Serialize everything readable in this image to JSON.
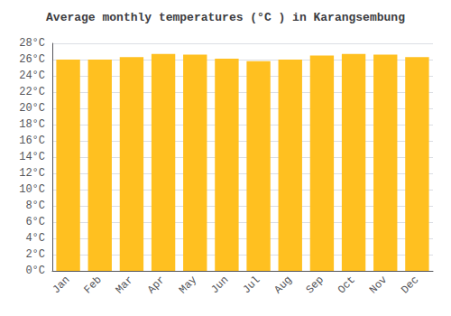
{
  "chart_data": {
    "type": "bar",
    "title": "Average monthly temperatures (°C ) in Karangsembung",
    "categories": [
      "Jan",
      "Feb",
      "Mar",
      "Apr",
      "May",
      "Jun",
      "Jul",
      "Aug",
      "Sep",
      "Oct",
      "Nov",
      "Dec"
    ],
    "values": [
      26.0,
      26.0,
      26.3,
      26.7,
      26.6,
      26.1,
      25.8,
      26.0,
      26.5,
      26.7,
      26.6,
      26.3
    ],
    "color": "#FFC020",
    "ylim": [
      0,
      28
    ],
    "yticks": [
      {
        "value": 0,
        "label": "0°C"
      },
      {
        "value": 2,
        "label": "2°C"
      },
      {
        "value": 4,
        "label": "4°C"
      },
      {
        "value": 6,
        "label": "6°C"
      },
      {
        "value": 8,
        "label": "8°C"
      },
      {
        "value": 10,
        "label": "10°C"
      },
      {
        "value": 12,
        "label": "12°C"
      },
      {
        "value": 14,
        "label": "14°C"
      },
      {
        "value": 16,
        "label": "16°C"
      },
      {
        "value": 18,
        "label": "18°C"
      },
      {
        "value": 20,
        "label": "20°C"
      },
      {
        "value": 22,
        "label": "22°C"
      },
      {
        "value": 24,
        "label": "24°C"
      },
      {
        "value": 26,
        "label": "26°C"
      },
      {
        "value": 28,
        "label": "28°C"
      }
    ],
    "grid": true
  }
}
